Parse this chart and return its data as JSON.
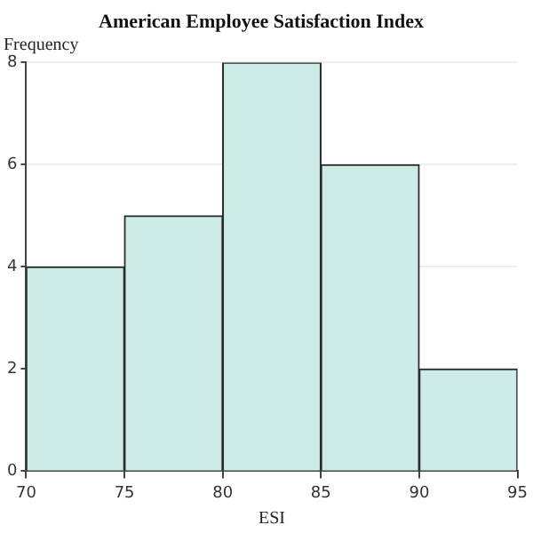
{
  "chart_data": {
    "type": "histogram",
    "title": "American Employee Satisfaction Index",
    "xlabel": "ESI",
    "ylabel": "Frequency",
    "bins": [
      70,
      75,
      80,
      85,
      90,
      95
    ],
    "values": [
      4,
      5,
      8,
      6,
      2
    ],
    "color": "#cdebe5",
    "xlim": [
      70,
      95
    ],
    "xticks": [
      70,
      75,
      80,
      85,
      90,
      95
    ],
    "ylim": [
      0,
      8
    ],
    "yticks": [
      0,
      2,
      4,
      6,
      8
    ],
    "grid": "y",
    "legend": false
  }
}
